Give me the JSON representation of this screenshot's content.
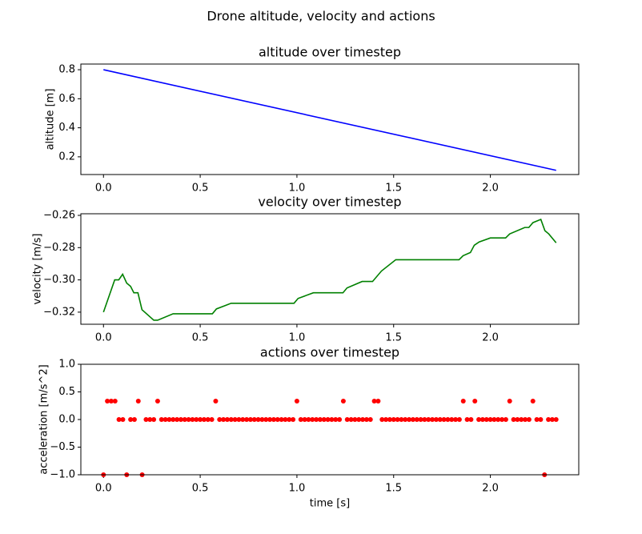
{
  "title": "Drone altitude, velocity and actions",
  "chart_data": [
    {
      "type": "line",
      "title": "altitude over timestep",
      "y_label": "altitude [m]",
      "color": "#0000ff",
      "x": [
        0,
        2.34
      ],
      "values": [
        0.8,
        0.107
      ],
      "xlim": [
        -0.117,
        2.457
      ],
      "ylim": [
        0.078,
        0.839
      ],
      "xticks": [
        {
          "value": 0,
          "label": "0.0"
        },
        {
          "value": 0.5,
          "label": "0.5"
        },
        {
          "value": 1,
          "label": "1.0"
        },
        {
          "value": 1.5,
          "label": "1.5"
        },
        {
          "value": 2,
          "label": "2.0"
        }
      ],
      "yticks": [
        0.2,
        0.4,
        0.6,
        0.8
      ]
    },
    {
      "type": "line",
      "title": "velocity over timestep",
      "y_label": "velocity [m/s]",
      "color": "#008000",
      "x": [
        0,
        0.058,
        0.079,
        0.099,
        0.12,
        0.14,
        0.157,
        0.178,
        0.199,
        0.26,
        0.28,
        0.36,
        0.563,
        0.584,
        0.66,
        0.985,
        1.006,
        1.085,
        1.238,
        1.259,
        1.337,
        1.391,
        1.437,
        1.511,
        1.838,
        1.859,
        1.897,
        1.917,
        1.942,
        2.0,
        2.079,
        2.1,
        2.178,
        2.199,
        2.22,
        2.261,
        2.282,
        2.302,
        2.34
      ],
      "values": [
        -0.32,
        -0.3,
        -0.3,
        -0.2965,
        -0.302,
        -0.304,
        -0.308,
        -0.308,
        -0.3185,
        -0.325,
        -0.325,
        -0.321,
        -0.321,
        -0.318,
        -0.3145,
        -0.3145,
        -0.3115,
        -0.308,
        -0.308,
        -0.305,
        -0.301,
        -0.301,
        -0.2945,
        -0.2875,
        -0.2875,
        -0.285,
        -0.283,
        -0.2785,
        -0.2765,
        -0.274,
        -0.274,
        -0.2715,
        -0.2675,
        -0.2675,
        -0.2645,
        -0.2625,
        -0.2695,
        -0.2715,
        -0.277
      ],
      "xlim": [
        -0.117,
        2.457
      ],
      "ylim": [
        -0.3275,
        -0.259
      ],
      "xticks": [
        {
          "value": 0,
          "label": "0.0"
        },
        {
          "value": 0.5,
          "label": "0.5"
        },
        {
          "value": 1,
          "label": "1.0"
        },
        {
          "value": 1.5,
          "label": "1.5"
        },
        {
          "value": 2,
          "label": "2.0"
        }
      ],
      "yticks": [
        {
          "value": -0.32,
          "label": "−0.32"
        },
        {
          "value": -0.3,
          "label": "−0.30"
        },
        {
          "value": -0.28,
          "label": "−0.28"
        },
        {
          "value": -0.26,
          "label": "−0.26"
        }
      ]
    },
    {
      "type": "scatter",
      "title": "actions over timestep",
      "x_label": "time [s]",
      "y_label": "acceleration [m/s^2]",
      "color": "#ff0000",
      "x": [
        0,
        0.02,
        0.04,
        0.06,
        0.08,
        0.1,
        0.12,
        0.14,
        0.16,
        0.18,
        0.2,
        0.22,
        0.24,
        0.26,
        0.28,
        0.3,
        0.32,
        0.34,
        0.36,
        0.38,
        0.4,
        0.42,
        0.44,
        0.46,
        0.48,
        0.5,
        0.52,
        0.54,
        0.56,
        0.58,
        0.6,
        0.62,
        0.64,
        0.66,
        0.68,
        0.7,
        0.72,
        0.74,
        0.76,
        0.78,
        0.8,
        0.82,
        0.84,
        0.86,
        0.88,
        0.9,
        0.92,
        0.94,
        0.96,
        0.98,
        1,
        1.02,
        1.04,
        1.06,
        1.08,
        1.1,
        1.12,
        1.14,
        1.16,
        1.18,
        1.2,
        1.22,
        1.24,
        1.26,
        1.28,
        1.3,
        1.32,
        1.34,
        1.36,
        1.38,
        1.4,
        1.42,
        1.44,
        1.46,
        1.48,
        1.5,
        1.52,
        1.54,
        1.56,
        1.58,
        1.6,
        1.62,
        1.64,
        1.66,
        1.68,
        1.7,
        1.72,
        1.74,
        1.76,
        1.78,
        1.8,
        1.82,
        1.84,
        1.86,
        1.88,
        1.9,
        1.92,
        1.94,
        1.96,
        1.98,
        2,
        2.02,
        2.04,
        2.06,
        2.08,
        2.1,
        2.12,
        2.14,
        2.16,
        2.18,
        2.2,
        2.22,
        2.24,
        2.26,
        2.28,
        2.3,
        2.32,
        2.34
      ],
      "values": [
        -1,
        0.333,
        0.333,
        0.333,
        0,
        0,
        -1,
        0,
        0,
        0.333,
        -1,
        0,
        0,
        0,
        0.333,
        0,
        0,
        0,
        0,
        0,
        0,
        0,
        0,
        0,
        0,
        0,
        0,
        0,
        0,
        0.333,
        0,
        0,
        0,
        0,
        0,
        0,
        0,
        0,
        0,
        0,
        0,
        0,
        0,
        0,
        0,
        0,
        0,
        0,
        0,
        0,
        0.333,
        0,
        0,
        0,
        0,
        0,
        0,
        0,
        0,
        0,
        0,
        0,
        0.333,
        0,
        0,
        0,
        0,
        0,
        0,
        0,
        0.333,
        0.333,
        0,
        0,
        0,
        0,
        0,
        0,
        0,
        0,
        0,
        0,
        0,
        0,
        0,
        0,
        0,
        0,
        0,
        0,
        0,
        0,
        0,
        0.333,
        0,
        0,
        0.333,
        0,
        0,
        0,
        0,
        0,
        0,
        0,
        0,
        0.333,
        0,
        0,
        0,
        0,
        0,
        0.333,
        0,
        0,
        -1,
        0,
        0,
        0
      ],
      "xlim": [
        -0.117,
        2.457
      ],
      "ylim": [
        -1,
        1
      ],
      "xticks": [
        {
          "value": 0,
          "label": "0.0"
        },
        {
          "value": 0.5,
          "label": "0.5"
        },
        {
          "value": 1,
          "label": "1.0"
        },
        {
          "value": 1.5,
          "label": "1.5"
        },
        {
          "value": 2,
          "label": "2.0"
        }
      ],
      "yticks": [
        {
          "value": -1,
          "label": "−1.0"
        },
        {
          "value": -0.5,
          "label": "−0.5"
        },
        {
          "value": 0,
          "label": "0.0"
        },
        {
          "value": 0.5,
          "label": "0.5"
        },
        {
          "value": 1,
          "label": "1.0"
        }
      ]
    }
  ]
}
